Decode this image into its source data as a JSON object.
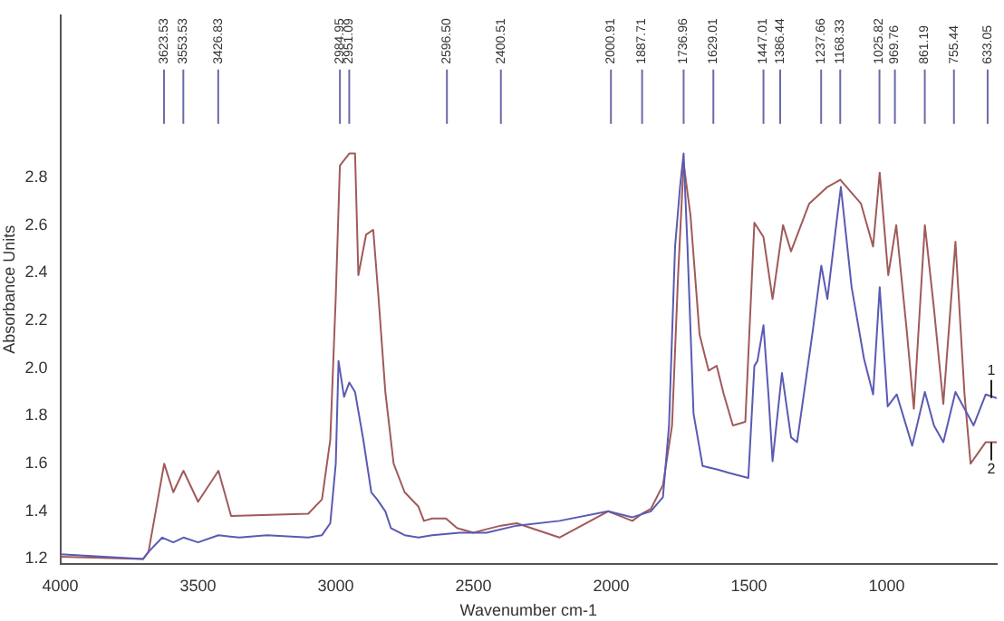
{
  "chart_data": {
    "type": "line",
    "xlabel": "Wavenumber cm-1",
    "ylabel": "Absorbance Units",
    "xlim": [
      4000,
      600
    ],
    "xticks": [
      4000,
      3500,
      3000,
      2500,
      2000,
      1500,
      1000
    ],
    "ylim": [
      1.18,
      3.48
    ],
    "yticks": [
      1.2,
      1.4,
      1.6,
      1.8,
      {
        "value": 2,
        "label": "2.0"
      },
      2.2,
      2.4,
      2.6,
      2.8
    ],
    "grid": false,
    "legend": false,
    "marker": "none",
    "line_style": "solid",
    "series": [
      {
        "name": "1",
        "color": "#5a5ab4",
        "x": [
          4000,
          3700,
          3680,
          3630,
          3590,
          3553,
          3500,
          3426,
          3350,
          3250,
          3100,
          3050,
          3020,
          3000,
          2990,
          2970,
          2951,
          2930,
          2900,
          2871,
          2850,
          2820,
          2800,
          2750,
          2700,
          2650,
          2550,
          2453,
          2343,
          2188,
          2011,
          1923,
          1856,
          1812,
          1790,
          1768,
          1750,
          1737,
          1723,
          1701,
          1668,
          1613,
          1568,
          1502,
          1480,
          1469,
          1447,
          1429,
          1414,
          1380,
          1347,
          1325,
          1270,
          1237,
          1215,
          1182,
          1166,
          1127,
          1082,
          1049,
          1025,
          996,
          963,
          907,
          861,
          828,
          794,
          750,
          684,
          640,
          600
        ],
        "values": [
          1.22,
          1.2,
          1.23,
          1.29,
          1.27,
          1.29,
          1.27,
          1.3,
          1.29,
          1.3,
          1.29,
          1.3,
          1.35,
          1.6,
          2.03,
          1.88,
          1.94,
          1.9,
          1.7,
          1.48,
          1.45,
          1.4,
          1.33,
          1.3,
          1.29,
          1.3,
          1.31,
          1.31,
          1.34,
          1.36,
          1.4,
          1.375,
          1.4,
          1.46,
          1.76,
          2.51,
          2.76,
          2.9,
          2.51,
          1.81,
          1.59,
          1.575,
          1.56,
          1.54,
          2.01,
          2.03,
          2.18,
          1.89,
          1.61,
          1.98,
          1.71,
          1.69,
          2.14,
          2.43,
          2.29,
          2.61,
          2.76,
          2.34,
          2.04,
          1.89,
          2.34,
          1.84,
          1.89,
          1.675,
          1.9,
          1.76,
          1.69,
          1.9,
          1.76,
          1.89,
          1.875
        ]
      },
      {
        "name": "2",
        "color": "#a05a5a",
        "x": [
          4000,
          3700,
          3680,
          3623,
          3590,
          3553,
          3500,
          3426,
          3380,
          3100,
          3050,
          3020,
          3000,
          2985,
          2951,
          2930,
          2918,
          2890,
          2864,
          2845,
          2820,
          2790,
          2750,
          2700,
          2680,
          2650,
          2600,
          2560,
          2500,
          2453,
          2400.51,
          2343,
          2188,
          2011,
          1923,
          1887.71,
          1856,
          1812,
          1779,
          1757,
          1737,
          1712,
          1679,
          1646,
          1617,
          1591,
          1558,
          1513,
          1480,
          1447,
          1414,
          1376,
          1347,
          1281,
          1215,
          1168,
          1093,
          1049,
          1025,
          994,
          965,
          927,
          901,
          861,
          828,
          794,
          750,
          717,
          695,
          640,
          600
        ],
        "values": [
          1.21,
          1.2,
          1.23,
          1.6,
          1.48,
          1.57,
          1.44,
          1.57,
          1.38,
          1.39,
          1.45,
          1.7,
          2.3,
          2.85,
          2.9,
          2.9,
          2.39,
          2.56,
          2.58,
          2.3,
          1.9,
          1.6,
          1.48,
          1.42,
          1.36,
          1.37,
          1.37,
          1.33,
          1.31,
          1.325,
          1.34,
          1.35,
          1.29,
          1.4,
          1.36,
          1.39,
          1.41,
          1.51,
          1.76,
          2.39,
          2.86,
          2.64,
          2.14,
          1.99,
          2.01,
          1.89,
          1.76,
          1.775,
          2.61,
          2.55,
          2.29,
          2.6,
          2.49,
          2.69,
          2.76,
          2.79,
          2.69,
          2.51,
          2.82,
          2.39,
          2.6,
          2.16,
          1.83,
          2.6,
          2.25,
          1.85,
          2.53,
          1.89,
          1.6,
          1.69,
          1.69
        ]
      }
    ],
    "annotations": [
      {
        "text": "3623.53",
        "x": 3623.53
      },
      {
        "text": "3553.53",
        "x": 3553.53
      },
      {
        "text": "3426.83",
        "x": 3426.83
      },
      {
        "text": "2984.95",
        "x": 2984.95
      },
      {
        "text": "2951.09",
        "x": 2951.09
      },
      {
        "text": "2596.50",
        "x": 2596.5
      },
      {
        "text": "2400.51",
        "x": 2400.51
      },
      {
        "text": "2000.91",
        "x": 2000.91
      },
      {
        "text": "1887.71",
        "x": 1887.71
      },
      {
        "text": "1736.96",
        "x": 1736.96
      },
      {
        "text": "1629.01",
        "x": 1629.01
      },
      {
        "text": "1447.01",
        "x": 1447.01
      },
      {
        "text": "1386.44",
        "x": 1386.44
      },
      {
        "text": "1237.66",
        "x": 1237.66
      },
      {
        "text": "1168.33",
        "x": 1168.33
      },
      {
        "text": "1025.82",
        "x": 1025.82
      },
      {
        "text": "969.76",
        "x": 969.76
      },
      {
        "text": "861.19",
        "x": 861.19
      },
      {
        "text": "755.44",
        "x": 755.44
      },
      {
        "text": "633.05",
        "x": 633.05
      }
    ]
  }
}
